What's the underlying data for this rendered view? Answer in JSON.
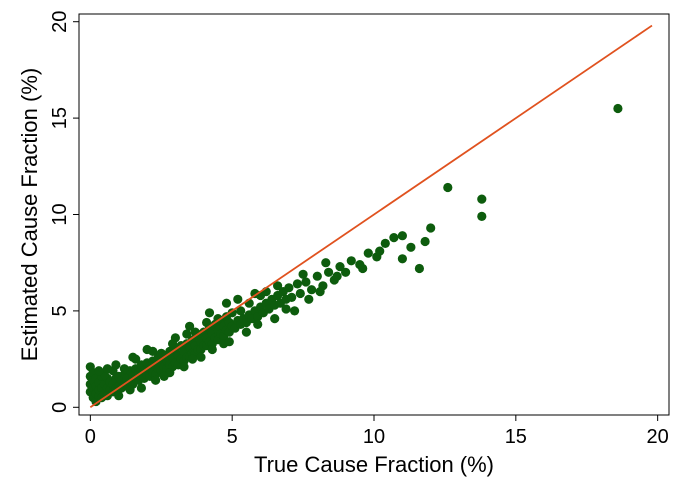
{
  "chart_data": {
    "type": "scatter",
    "xlabel": "True Cause Fraction (%)",
    "ylabel": "Estimated Cause Fraction (%)",
    "xlim": [
      -0.4,
      20.4
    ],
    "ylim": [
      -0.4,
      20.4
    ],
    "xticks": [
      0,
      5,
      10,
      15,
      20
    ],
    "yticks": [
      0,
      5,
      10,
      15,
      20
    ],
    "grid": false,
    "point_color": "#0d5c0d",
    "line_color": "#e0521f",
    "reference_line": {
      "x": [
        0,
        19.8
      ],
      "y": [
        0,
        19.8
      ]
    },
    "points": [
      [
        0.0,
        0.8
      ],
      [
        0.0,
        1.2
      ],
      [
        0.0,
        1.6
      ],
      [
        0.0,
        2.1
      ],
      [
        0.1,
        0.5
      ],
      [
        0.1,
        1.0
      ],
      [
        0.1,
        1.4
      ],
      [
        0.1,
        1.8
      ],
      [
        0.2,
        0.3
      ],
      [
        0.2,
        0.7
      ],
      [
        0.2,
        1.1
      ],
      [
        0.2,
        1.5
      ],
      [
        0.3,
        0.6
      ],
      [
        0.3,
        0.9
      ],
      [
        0.3,
        1.3
      ],
      [
        0.4,
        0.5
      ],
      [
        0.4,
        1.0
      ],
      [
        0.4,
        1.6
      ],
      [
        0.5,
        0.7
      ],
      [
        0.5,
        1.2
      ],
      [
        0.6,
        0.6
      ],
      [
        0.6,
        1.0
      ],
      [
        0.6,
        1.5
      ],
      [
        0.7,
        0.9
      ],
      [
        0.7,
        1.3
      ],
      [
        0.8,
        0.8
      ],
      [
        0.8,
        1.2
      ],
      [
        0.9,
        1.0
      ],
      [
        0.9,
        1.5
      ],
      [
        1.0,
        1.1
      ],
      [
        1.0,
        1.6
      ],
      [
        1.1,
        1.0
      ],
      [
        1.1,
        1.4
      ],
      [
        1.2,
        1.2
      ],
      [
        1.2,
        1.7
      ],
      [
        1.3,
        1.1
      ],
      [
        1.3,
        1.5
      ],
      [
        1.4,
        1.3
      ],
      [
        1.4,
        1.9
      ],
      [
        1.5,
        1.2
      ],
      [
        1.5,
        1.6
      ],
      [
        1.6,
        1.5
      ],
      [
        1.6,
        2.0
      ],
      [
        1.7,
        1.4
      ],
      [
        1.7,
        1.8
      ],
      [
        1.8,
        1.6
      ],
      [
        1.8,
        2.2
      ],
      [
        1.9,
        1.5
      ],
      [
        1.9,
        1.9
      ],
      [
        2.0,
        1.7
      ],
      [
        2.0,
        2.3
      ],
      [
        2.1,
        1.6
      ],
      [
        2.1,
        2.0
      ],
      [
        2.2,
        1.8
      ],
      [
        2.2,
        2.4
      ],
      [
        2.3,
        1.7
      ],
      [
        2.3,
        2.1
      ],
      [
        2.4,
        2.0
      ],
      [
        2.4,
        2.6
      ],
      [
        2.5,
        1.9
      ],
      [
        2.5,
        2.3
      ],
      [
        2.6,
        2.1
      ],
      [
        2.6,
        2.7
      ],
      [
        2.7,
        2.0
      ],
      [
        2.7,
        2.4
      ],
      [
        2.8,
        2.2
      ],
      [
        2.8,
        2.9
      ],
      [
        2.9,
        2.1
      ],
      [
        2.9,
        2.6
      ],
      [
        3.0,
        2.3
      ],
      [
        3.0,
        3.0
      ],
      [
        3.1,
        2.2
      ],
      [
        3.1,
        2.7
      ],
      [
        3.2,
        2.5
      ],
      [
        3.2,
        3.2
      ],
      [
        3.3,
        2.4
      ],
      [
        3.3,
        2.9
      ],
      [
        3.4,
        2.6
      ],
      [
        3.4,
        3.3
      ],
      [
        3.5,
        2.6
      ],
      [
        3.5,
        3.1
      ],
      [
        3.6,
        2.8
      ],
      [
        3.6,
        3.5
      ],
      [
        3.7,
        2.8
      ],
      [
        3.7,
        3.2
      ],
      [
        3.8,
        3.0
      ],
      [
        3.8,
        3.7
      ],
      [
        3.9,
        3.0
      ],
      [
        3.9,
        3.4
      ],
      [
        4.0,
        3.2
      ],
      [
        4.0,
        3.9
      ],
      [
        4.1,
        3.2
      ],
      [
        4.1,
        3.6
      ],
      [
        4.2,
        3.4
      ],
      [
        4.2,
        4.1
      ],
      [
        4.3,
        3.3
      ],
      [
        4.3,
        3.8
      ],
      [
        4.4,
        3.6
      ],
      [
        4.4,
        4.3
      ],
      [
        4.5,
        3.5
      ],
      [
        4.5,
        4.0
      ],
      [
        4.6,
        3.8
      ],
      [
        4.6,
        4.5
      ],
      [
        4.7,
        3.7
      ],
      [
        4.7,
        4.2
      ],
      [
        4.8,
        4.0
      ],
      [
        4.8,
        4.7
      ],
      [
        4.9,
        3.9
      ],
      [
        4.9,
        4.4
      ],
      [
        5.0,
        4.2
      ],
      [
        5.0,
        4.9
      ],
      [
        5.1,
        4.1
      ],
      [
        5.2,
        4.5
      ],
      [
        5.3,
        4.3
      ],
      [
        5.3,
        5.0
      ],
      [
        5.4,
        4.6
      ],
      [
        5.5,
        4.4
      ],
      [
        5.6,
        4.8
      ],
      [
        5.6,
        5.4
      ],
      [
        5.7,
        4.6
      ],
      [
        5.8,
        5.0
      ],
      [
        5.9,
        4.7
      ],
      [
        6.0,
        5.2
      ],
      [
        6.0,
        5.8
      ],
      [
        6.1,
        4.9
      ],
      [
        6.2,
        5.4
      ],
      [
        6.3,
        5.1
      ],
      [
        6.4,
        5.6
      ],
      [
        6.5,
        5.3
      ],
      [
        6.6,
        5.8
      ],
      [
        6.7,
        5.4
      ],
      [
        6.8,
        6.0
      ],
      [
        6.9,
        5.6
      ],
      [
        7.0,
        6.2
      ],
      [
        7.1,
        5.7
      ],
      [
        7.3,
        6.4
      ],
      [
        7.4,
        5.9
      ],
      [
        7.6,
        6.5
      ],
      [
        7.8,
        6.1
      ],
      [
        8.0,
        6.8
      ],
      [
        8.2,
        6.3
      ],
      [
        8.4,
        7.0
      ],
      [
        8.6,
        6.6
      ],
      [
        8.8,
        7.3
      ],
      [
        9.0,
        7.0
      ],
      [
        9.2,
        7.6
      ],
      [
        9.5,
        7.4
      ],
      [
        9.8,
        8.0
      ],
      [
        10.1,
        7.8
      ],
      [
        10.4,
        8.5
      ],
      [
        10.7,
        8.8
      ],
      [
        11.0,
        7.7
      ],
      [
        11.0,
        8.9
      ],
      [
        11.3,
        8.3
      ],
      [
        11.6,
        7.2
      ],
      [
        11.8,
        8.6
      ],
      [
        12.0,
        9.3
      ],
      [
        12.6,
        11.4
      ],
      [
        13.8,
        9.9
      ],
      [
        13.8,
        10.8
      ],
      [
        18.6,
        15.5
      ],
      [
        2.0,
        3.0
      ],
      [
        1.5,
        2.6
      ],
      [
        3.0,
        3.6
      ],
      [
        3.5,
        4.2
      ],
      [
        4.2,
        4.9
      ],
      [
        4.8,
        5.4
      ],
      [
        5.2,
        5.6
      ],
      [
        2.3,
        1.4
      ],
      [
        3.3,
        2.1
      ],
      [
        4.3,
        3.0
      ],
      [
        5.5,
        3.9
      ],
      [
        6.5,
        4.6
      ],
      [
        7.2,
        5.0
      ],
      [
        2.5,
        2.8
      ],
      [
        3.7,
        3.9
      ],
      [
        4.5,
        4.6
      ],
      [
        5.8,
        5.9
      ],
      [
        6.2,
        6.0
      ],
      [
        1.2,
        2.0
      ],
      [
        0.8,
        1.9
      ],
      [
        0.5,
        1.7
      ],
      [
        1.0,
        0.6
      ],
      [
        1.8,
        1.0
      ],
      [
        2.8,
        1.8
      ],
      [
        3.9,
        2.6
      ],
      [
        4.7,
        3.3
      ],
      [
        5.9,
        4.3
      ],
      [
        6.9,
        5.1
      ],
      [
        7.7,
        5.6
      ],
      [
        8.1,
        6.0
      ],
      [
        8.7,
        6.8
      ],
      [
        9.6,
        7.2
      ],
      [
        10.2,
        8.1
      ],
      [
        6.6,
        6.3
      ],
      [
        7.5,
        6.9
      ],
      [
        8.3,
        7.5
      ],
      [
        1.4,
        0.9
      ],
      [
        2.6,
        1.6
      ],
      [
        3.6,
        2.5
      ],
      [
        4.9,
        3.4
      ],
      [
        0.3,
        1.9
      ],
      [
        0.6,
        2.0
      ],
      [
        0.9,
        2.2
      ],
      [
        1.6,
        2.5
      ],
      [
        2.2,
        2.9
      ],
      [
        2.9,
        3.3
      ],
      [
        3.4,
        3.8
      ],
      [
        4.1,
        4.4
      ]
    ]
  }
}
